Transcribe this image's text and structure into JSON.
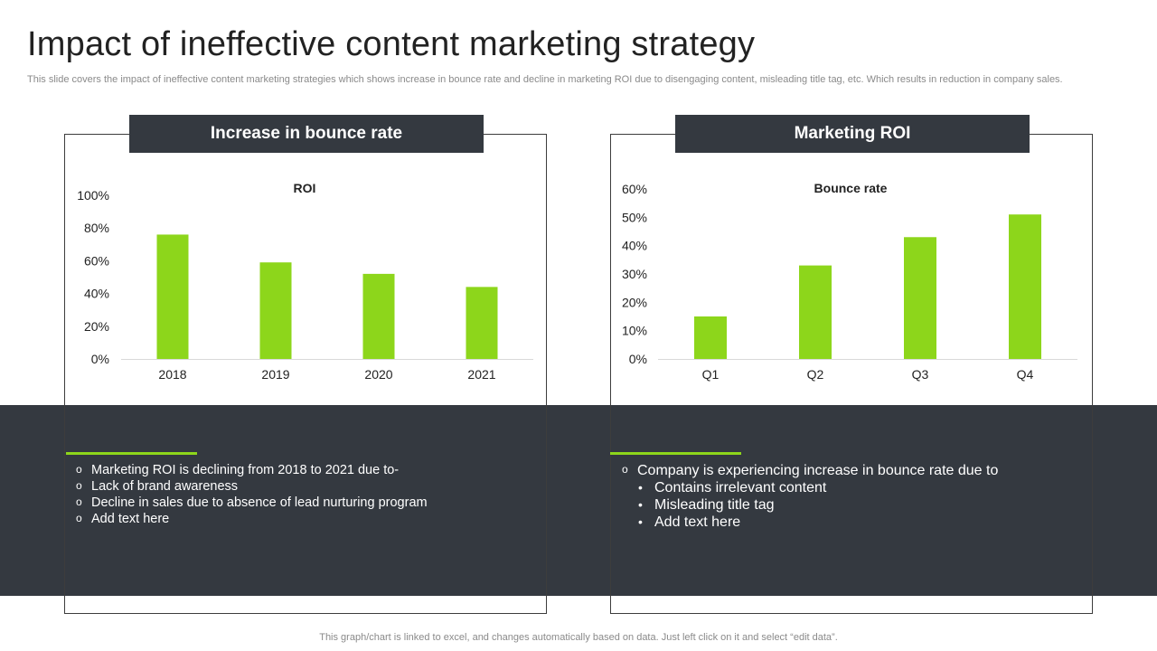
{
  "page": {
    "title": "Impact of ineffective content marketing strategy",
    "subtitle": "This slide covers the impact of ineffective content marketing strategies which shows increase in bounce rate and decline in marketing ROI due to disengaging content, misleading title tag, etc. Which results in reduction in company sales.",
    "footer": "This graph/chart is linked to excel,  and changes automatically based on data. Just left click on it and select “edit data”."
  },
  "left_panel": {
    "header": "Increase in bounce rate",
    "bullets": [
      "Marketing ROI is declining from 2018 to 2021 due to-",
      "Lack of brand awareness",
      "Decline in sales due to absence of lead nurturing program",
      "Add text here"
    ]
  },
  "right_panel": {
    "header": "Marketing ROI",
    "bullet_main": "Company is experiencing increase in bounce rate due to",
    "sub_bullets": [
      "Contains irrelevant content",
      "Misleading title tag",
      "Add text here"
    ]
  },
  "colors": {
    "bar": "#8dd61b",
    "dark": "#343940",
    "accent": "#8dd61b"
  },
  "chart_data": [
    {
      "type": "bar",
      "title": "ROI",
      "categories": [
        "2018",
        "2019",
        "2020",
        "2021"
      ],
      "values": [
        76,
        59,
        52,
        44
      ],
      "yticks": [
        "0%",
        "20%",
        "40%",
        "60%",
        "80%",
        "100%"
      ],
      "ylim": [
        0,
        100
      ],
      "grid": false,
      "legend": "none"
    },
    {
      "type": "bar",
      "title": "Bounce rate",
      "categories": [
        "Q1",
        "Q2",
        "Q3",
        "Q4"
      ],
      "values": [
        15,
        33,
        43,
        51
      ],
      "yticks": [
        "0%",
        "10%",
        "20%",
        "30%",
        "40%",
        "50%",
        "60%"
      ],
      "ylim": [
        0,
        60
      ],
      "grid": false,
      "legend": "none"
    }
  ]
}
